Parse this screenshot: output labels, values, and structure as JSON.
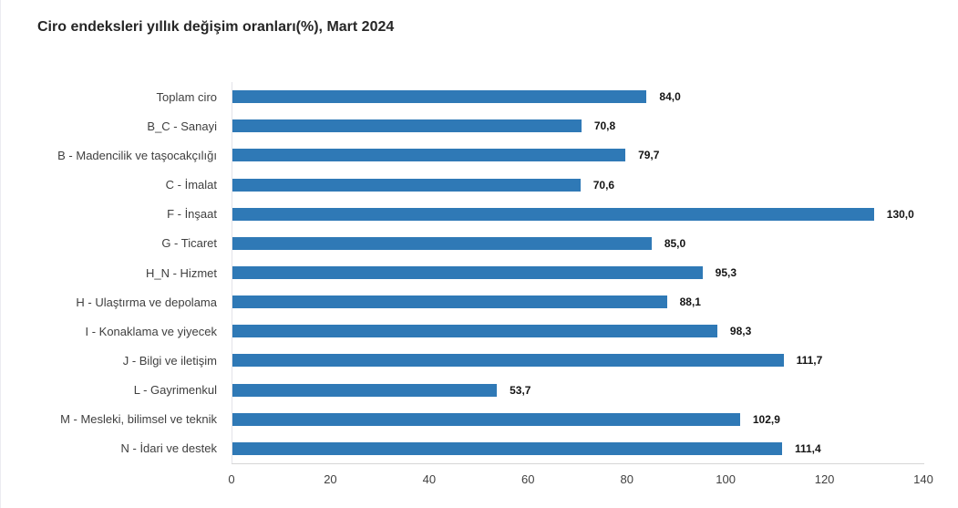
{
  "page": {
    "background": "#ffffff",
    "left_border_color": "#ececf1"
  },
  "chart_data": {
    "type": "bar",
    "orientation": "horizontal",
    "title": "Ciro endeksleri yıllık değişim oranları(%), Mart 2024",
    "xlabel": "",
    "ylabel": "",
    "categories": [
      "Toplam ciro",
      "B_C - Sanayi",
      "B - Madencilik ve taşocakçılığı",
      "C - İmalat",
      "F - İnşaat",
      "G - Ticaret",
      "H_N - Hizmet",
      "H - Ulaştırma ve depolama",
      "I - Konaklama ve yiyecek",
      "J - Bilgi ve iletişim",
      "L - Gayrimenkul",
      "M - Mesleki, bilimsel ve teknik",
      "N - İdari ve destek"
    ],
    "values": [
      84.0,
      70.8,
      79.7,
      70.6,
      130.0,
      85.0,
      95.3,
      88.1,
      98.3,
      111.7,
      53.7,
      102.9,
      111.4
    ],
    "value_labels": [
      "84,0",
      "70,8",
      "79,7",
      "70,6",
      "130,0",
      "85,0",
      "95,3",
      "88,1",
      "98,3",
      "111,7",
      "53,7",
      "102,9",
      "111,4"
    ],
    "xlim": [
      0,
      140
    ],
    "x_ticks": [
      "0",
      "20",
      "40",
      "60",
      "80",
      "100",
      "120",
      "140"
    ],
    "grid": false,
    "legend": false,
    "bar_color": "#2f79b6",
    "axis_line_color": "#d6d6d6",
    "label_color": "#404040",
    "value_label_color": "#141414",
    "title_color": "#262626"
  }
}
